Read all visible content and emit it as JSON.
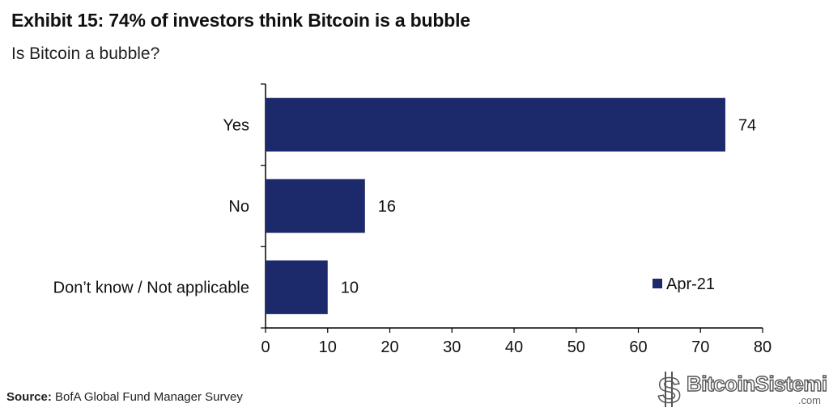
{
  "header": {
    "title": "Exhibit 15: 74% of investors think Bitcoin is a bubble",
    "subtitle": "Is Bitcoin a bubble?"
  },
  "footer": {
    "source_label": "Source:",
    "source_text": "BofA Global Fund Manager Survey"
  },
  "watermark": {
    "text": "BitcoinSistemi",
    "suffix": ".com"
  },
  "colors": {
    "bar": "#1c2a6b",
    "axis": "#000000"
  },
  "chart_data": {
    "type": "bar",
    "orientation": "horizontal",
    "title": "Exhibit 15: 74% of investors think Bitcoin is a bubble",
    "subtitle": "Is Bitcoin a bubble?",
    "categories": [
      "Yes",
      "No",
      "Don’t know / Not applicable"
    ],
    "series": [
      {
        "name": "Apr-21",
        "values": [
          74,
          16,
          10
        ]
      }
    ],
    "xlim": [
      0,
      80
    ],
    "xticks": [
      0,
      10,
      20,
      30,
      40,
      50,
      60,
      70,
      80
    ],
    "data_labels": true,
    "grid": false,
    "legend": "bottom-right"
  }
}
